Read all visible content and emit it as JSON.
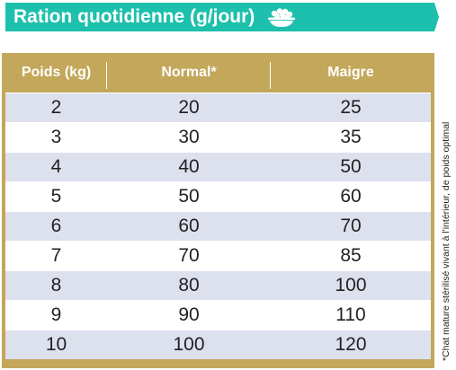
{
  "title": "Ration quotidienne (g/jour)",
  "title_icon": "food-bowl-icon",
  "colors": {
    "banner": "#1dc0ac",
    "header": "#c3a75a",
    "stripe": "#dde1ee"
  },
  "table": {
    "headers": [
      "Poids (kg)",
      "Normal*",
      "Maigre"
    ],
    "rows": [
      [
        "2",
        "20",
        "25"
      ],
      [
        "3",
        "30",
        "35"
      ],
      [
        "4",
        "40",
        "50"
      ],
      [
        "5",
        "50",
        "60"
      ],
      [
        "6",
        "60",
        "70"
      ],
      [
        "7",
        "70",
        "85"
      ],
      [
        "8",
        "80",
        "100"
      ],
      [
        "9",
        "90",
        "110"
      ],
      [
        "10",
        "100",
        "120"
      ]
    ]
  },
  "footnote": "*Chat mature stérilisé vivant à l'intérieur, de poids optimal"
}
